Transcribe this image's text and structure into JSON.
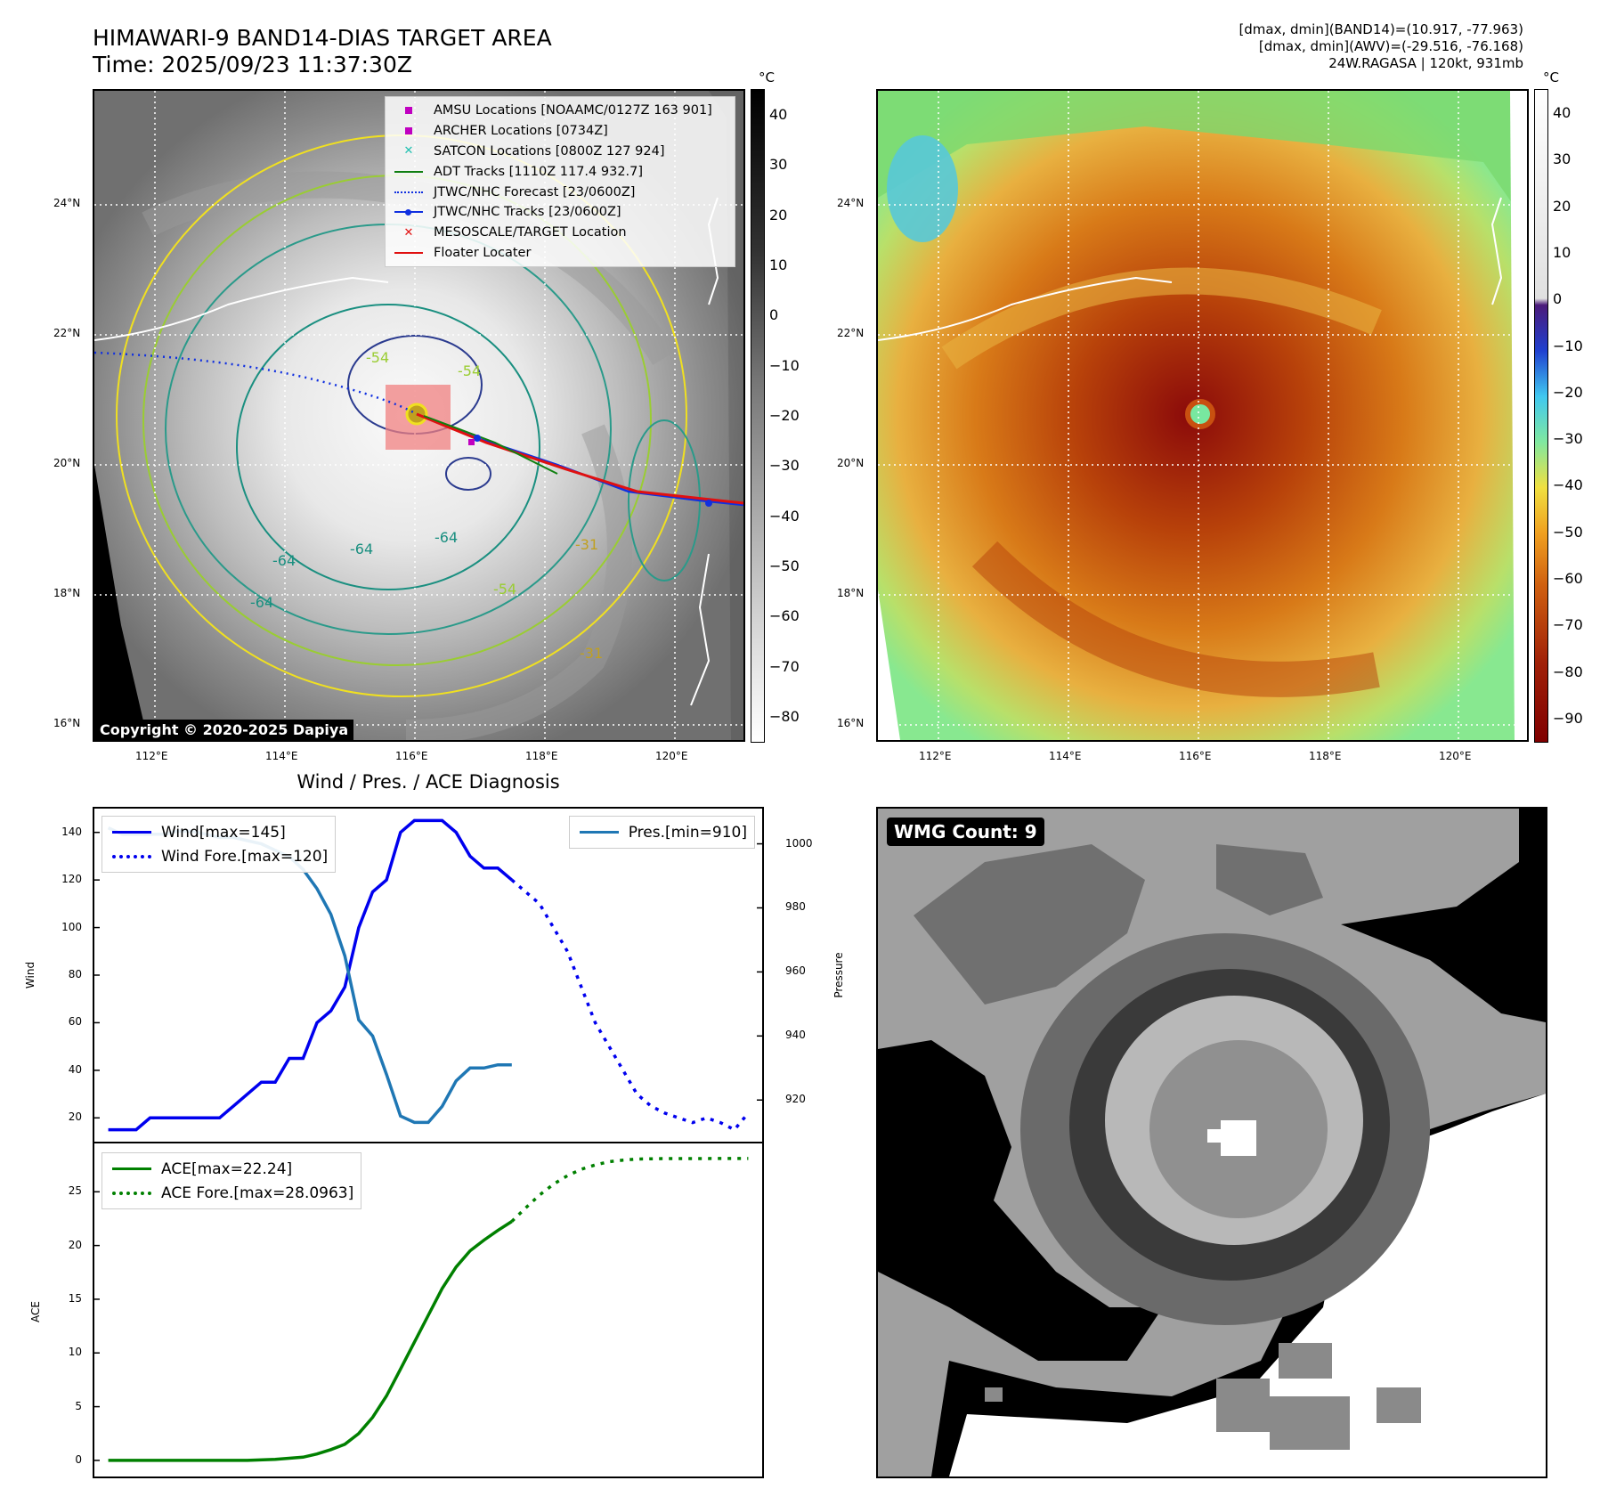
{
  "header": {
    "title_line1": "HIMAWARI-9 BAND14-DIAS TARGET AREA",
    "title_line2": "Time: 2025/09/23 11:37:30Z",
    "stats_line1": "[dmax, dmin](BAND14)=(10.917, -77.963)",
    "stats_line2": "[dmax, dmin](AWV)=(-29.516, -76.168)",
    "stats_line3": "24W.RAGASA | 120kt, 931mb"
  },
  "map_left": {
    "lat_ticks": [
      "24°N",
      "22°N",
      "20°N",
      "18°N",
      "16°N"
    ],
    "lon_ticks": [
      "112°E",
      "114°E",
      "116°E",
      "118°E",
      "120°E"
    ],
    "colorbar_unit": "°C",
    "colorbar_ticks": [
      "40",
      "30",
      "20",
      "10",
      "0",
      "−10",
      "−20",
      "−30",
      "−40",
      "−50",
      "−60",
      "−70",
      "−80"
    ],
    "copyright": "Copyright © 2020-2025 Dapiya",
    "contour_labels": [
      "-64",
      "-64",
      "-64",
      "-54",
      "-54",
      "-31",
      "-31",
      "-64",
      "-54"
    ],
    "legend": [
      {
        "label": "AMSU Locations [NOAAMC/0127Z 163 901]",
        "color": "#c000c0",
        "symbol": "square"
      },
      {
        "label": "ARCHER Locations [0734Z]",
        "color": "#c000c0",
        "symbol": "square"
      },
      {
        "label": "SATCON Locations [0800Z 127 924]",
        "color": "#20c0b0",
        "symbol": "x"
      },
      {
        "label": "ADT Tracks [1110Z 117.4 932.7]",
        "color": "#108010",
        "symbol": "line"
      },
      {
        "label": "JTWC/NHC Forecast [23/0600Z]",
        "color": "#1030e0",
        "symbol": "dotted"
      },
      {
        "label": "JTWC/NHC Tracks [23/0600Z]",
        "color": "#1030e0",
        "symbol": "line-dot"
      },
      {
        "label": "MESOSCALE/TARGET Location",
        "color": "#e01010",
        "symbol": "x"
      },
      {
        "label": "Floater Locater",
        "color": "#e01010",
        "symbol": "line"
      }
    ]
  },
  "map_right": {
    "lat_ticks": [
      "24°N",
      "22°N",
      "20°N",
      "18°N",
      "16°N"
    ],
    "lon_ticks": [
      "112°E",
      "114°E",
      "116°E",
      "118°E",
      "120°E"
    ],
    "colorbar_unit": "°C",
    "colorbar_ticks": [
      "40",
      "30",
      "20",
      "10",
      "0",
      "−10",
      "−20",
      "−30",
      "−40",
      "−50",
      "−60",
      "−70",
      "−80",
      "−90"
    ]
  },
  "wmg": {
    "label": "WMG Count: 9"
  },
  "chart_data": [
    {
      "type": "line",
      "title": "Wind / Pres. / ACE Diagnosis",
      "ylabel": "Wind",
      "ylabel_right": "Pressure",
      "ylim": [
        10,
        150
      ],
      "ylim_right": [
        907,
        1011
      ],
      "yticks": [
        20,
        40,
        60,
        80,
        100,
        120,
        140
      ],
      "yticks_right": [
        920,
        940,
        960,
        980,
        1000
      ],
      "series": [
        {
          "name": "Wind[max=145]",
          "axis": "left",
          "style": "solid",
          "color": "#0000ee",
          "x": [
            0,
            1,
            2,
            3,
            4,
            5,
            6,
            7,
            8,
            9,
            10,
            11,
            12,
            13,
            14,
            15,
            16,
            17,
            18,
            19,
            20,
            21,
            22,
            23,
            24,
            25,
            26,
            27,
            28,
            29,
            30,
            31,
            32,
            33,
            34
          ],
          "values": [
            15,
            15,
            15,
            20,
            20,
            20,
            20,
            20,
            20,
            25,
            30,
            35,
            35,
            45,
            45,
            60,
            65,
            75,
            100,
            115,
            120,
            140,
            145,
            145,
            145,
            140,
            130,
            125,
            125,
            120,
            null,
            null,
            null,
            null,
            null
          ]
        },
        {
          "name": "Wind Fore.[max=120]",
          "axis": "left",
          "style": "dotted",
          "color": "#0000ee",
          "x": [
            29,
            30,
            31,
            32,
            33,
            34,
            35,
            36,
            37,
            38,
            39,
            40,
            41,
            42,
            43,
            44,
            45,
            46
          ],
          "values": [
            120,
            115,
            110,
            100,
            90,
            75,
            60,
            50,
            40,
            30,
            25,
            22,
            20,
            18,
            20,
            18,
            15,
            22
          ]
        },
        {
          "name": "Pres.[min=910]",
          "axis": "right",
          "style": "solid",
          "color": "#1f77b4",
          "x": [
            0,
            1,
            2,
            3,
            4,
            5,
            6,
            7,
            8,
            9,
            10,
            11,
            12,
            13,
            14,
            15,
            16,
            17,
            18,
            19,
            20,
            21,
            22,
            23,
            24,
            25,
            26,
            27,
            28,
            29
          ],
          "values": [
            1005,
            1003,
            1003,
            1003,
            1003,
            1004,
            1004,
            1003,
            1002,
            1002,
            1001,
            1000,
            998,
            996,
            992,
            986,
            978,
            965,
            945,
            940,
            928,
            915,
            913,
            913,
            918,
            926,
            930,
            930,
            931,
            931
          ]
        }
      ]
    },
    {
      "type": "line",
      "ylabel": "ACE",
      "ylim": [
        -1.5,
        29.5
      ],
      "yticks": [
        0,
        5,
        10,
        15,
        20,
        25
      ],
      "series": [
        {
          "name": "ACE[max=22.24]",
          "style": "solid",
          "color": "#008000",
          "x": [
            0,
            2,
            4,
            6,
            8,
            10,
            12,
            14,
            15,
            16,
            17,
            18,
            19,
            20,
            21,
            22,
            23,
            24,
            25,
            26,
            27,
            28,
            29
          ],
          "values": [
            0,
            0,
            0,
            0,
            0,
            0,
            0.1,
            0.3,
            0.6,
            1.0,
            1.5,
            2.5,
            4,
            6,
            8.5,
            11,
            13.5,
            16,
            18,
            19.5,
            20.5,
            21.4,
            22.24
          ]
        },
        {
          "name": "ACE Fore.[max=28.0963]",
          "style": "dotted",
          "color": "#008000",
          "x": [
            29,
            30,
            31,
            32,
            33,
            34,
            35,
            36,
            37,
            38,
            40,
            42,
            44,
            46
          ],
          "values": [
            22.24,
            23.5,
            24.7,
            25.7,
            26.5,
            27.1,
            27.5,
            27.8,
            27.95,
            28.05,
            28.09,
            28.09,
            28.0963,
            28.0963
          ]
        }
      ]
    }
  ]
}
